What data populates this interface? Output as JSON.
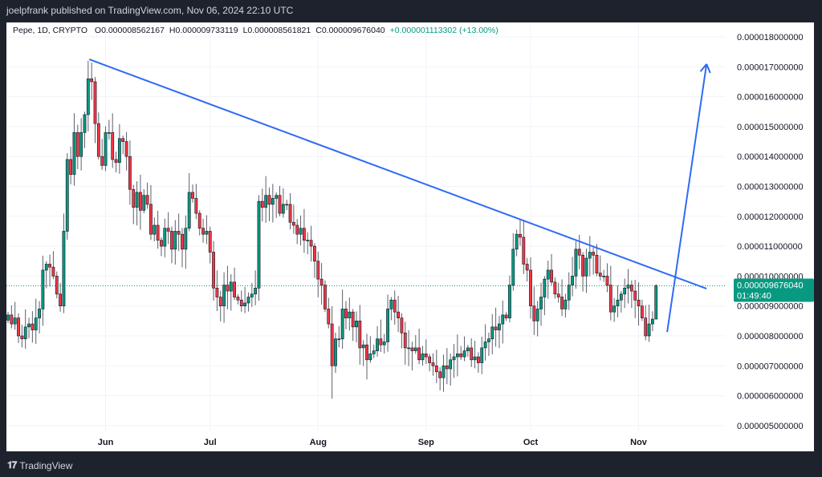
{
  "publisher_line": "joelpfrank published on TradingView.com, Nov 06, 2024 22:10 UTC",
  "legend": {
    "symbol": "Pepe, 1D, CRYPTO",
    "open": "O0.000008562167",
    "high": "H0.000009733119",
    "low": "L0.000008561821",
    "close": "C0.000009676040",
    "change": "+0.000001113302 (+13.00%)"
  },
  "price_label": {
    "value": "0.000009676040",
    "countdown": "01:49:40"
  },
  "footer": {
    "logo_mark": "17",
    "brand": "TradingView"
  },
  "colors": {
    "up": "#089981",
    "down": "#f23645",
    "drawing": "#2f6bf5",
    "price_line": "#089981",
    "background": "#1e222d"
  },
  "chart_data": {
    "type": "candlestick",
    "title": "",
    "xlabel": "",
    "ylabel": "",
    "x_tick_labels": [
      "Jun",
      "Jul",
      "Aug",
      "Sep",
      "Oct",
      "Nov"
    ],
    "y_ticks": [
      5e-06,
      6e-06,
      7e-06,
      8e-06,
      9e-06,
      1e-05,
      1.1e-05,
      1.2e-05,
      1.3e-05,
      1.4e-05,
      1.5e-05,
      1.6e-05,
      1.7e-05,
      1.8e-05
    ],
    "y_tick_labels": [
      "0.000005000000",
      "0.000006000000",
      "0.000007000000",
      "0.000008000000",
      "0.000009000000",
      "0.000010000000",
      "0.000011000000",
      "0.000012000000",
      "0.000013000000",
      "0.000014000000",
      "0.000015000000",
      "0.000016000000",
      "0.000017000000",
      "0.000018000000"
    ],
    "ylim": [
      4.5e-06,
      1.83e-05
    ],
    "grid": true,
    "closes": [
      8.7e-06,
      8.4e-06,
      8.6e-06,
      8e-06,
      7.9e-06,
      8.3e-06,
      8.4e-06,
      8.2e-06,
      8.6e-06,
      8.9e-06,
      1.02e-05,
      1.04e-05,
      1.03e-05,
      1e-05,
      9.4e-06,
      9e-06,
      1.15e-05,
      1.39e-05,
      1.34e-05,
      1.48e-05,
      1.4e-05,
      1.48e-05,
      1.54e-05,
      1.66e-05,
      1.65e-05,
      1.51e-05,
      1.4e-05,
      1.37e-05,
      1.48e-05,
      1.48e-05,
      1.39e-05,
      1.38e-05,
      1.46e-05,
      1.45e-05,
      1.4e-05,
      1.29e-05,
      1.23e-05,
      1.28e-05,
      1.22e-05,
      1.27e-05,
      1.24e-05,
      1.14e-05,
      1.17e-05,
      1.12e-05,
      1.1e-05,
      1.16e-05,
      1.15e-05,
      1.09e-05,
      1.15e-05,
      1.14e-05,
      1.09e-05,
      1.16e-05,
      1.28e-05,
      1.26e-05,
      1.21e-05,
      1.16e-05,
      1.14e-05,
      1.15e-05,
      1.08e-05,
      9.6e-06,
      9.3e-06,
      9e-06,
      9.7e-06,
      9.5e-06,
      9.8e-06,
      9.3e-06,
      9.2e-06,
      9e-06,
      9.1e-06,
      9.3e-06,
      9.4e-06,
      9.6e-06,
      1.25e-05,
      1.23e-05,
      1.27e-05,
      1.24e-05,
      1.26e-05,
      1.27e-05,
      1.21e-05,
      1.24e-05,
      1.24e-05,
      1.18e-05,
      1.17e-05,
      1.14e-05,
      1.16e-05,
      1.12e-05,
      1.12e-05,
      1.1e-05,
      1.05e-05,
      9.9e-06,
      9.7e-06,
      8.9e-06,
      8.4e-06,
      7e-06,
      7.9e-06,
      7.9e-06,
      8.9e-06,
      8.6e-06,
      8.8e-06,
      8.3e-06,
      8.5e-06,
      7.6e-06,
      7.7e-06,
      7.2e-06,
      7.4e-06,
      7.5e-06,
      7.9e-06,
      7.7e-06,
      7.8e-06,
      8.9e-06,
      9.2e-06,
      8.8e-06,
      8.6e-06,
      8.1e-06,
      7.6e-06,
      7.6e-06,
      7.5e-06,
      7.6e-06,
      7.2e-06,
      7.4e-06,
      7.3e-06,
      7.1e-06,
      7e-06,
      6.8e-06,
      6.6e-06,
      7e-06,
      6.9e-06,
      7.2e-06,
      7.3e-06,
      7.4e-06,
      7.3e-06,
      7.5e-06,
      7.6e-06,
      7.2e-06,
      7.3e-06,
      7.1e-06,
      7.6e-06,
      7.8e-06,
      7.9e-06,
      8.3e-06,
      8.2e-06,
      8.4e-06,
      8.7e-06,
      8.6e-06,
      9.7e-06,
      1.09e-05,
      1.14e-05,
      1.13e-05,
      1.04e-05,
      1.02e-05,
      9e-06,
      8.5e-06,
      8.9e-06,
      9.3e-06,
      9.9e-06,
      1.02e-05,
      9.8e-06,
      9.4e-06,
      9.3e-06,
      8.9e-06,
      9.2e-06,
      9.7e-06,
      1e-05,
      1.09e-05,
      1.07e-05,
      1e-05,
      1.06e-05,
      1.08e-05,
      1.07e-05,
      1.01e-05,
      1e-05,
      1e-05,
      9.7e-06,
      8.8e-06,
      9e-06,
      9.2e-06,
      9.4e-06,
      9.6e-06,
      9.7e-06,
      9.5e-06,
      9.2e-06,
      9e-06,
      8.6e-06,
      8e-06,
      8.4e-06,
      8.562e-06,
      9.676e-06
    ],
    "last_candle": {
      "open": 8.562167e-06,
      "high": 9.733119e-06,
      "low": 8.561821e-06,
      "close": 9.67604e-06
    },
    "notable_wicks": [
      {
        "candle": 23,
        "high": 1.72e-05
      },
      {
        "candle": 93,
        "low": 5.9e-06
      },
      {
        "candle": 147,
        "high": 1.19e-05
      },
      {
        "candle": 184,
        "low": 7.8e-06
      }
    ],
    "current_price": 9.67604e-06,
    "drawings": [
      {
        "type": "trendline",
        "from": {
          "candle": 23.3,
          "price": 1.725e-05
        },
        "to": {
          "candle": 200.5,
          "price": 9.58e-06
        }
      },
      {
        "type": "arrow",
        "from": {
          "candle": 189.2,
          "price": 8.13e-06
        },
        "to": {
          "candle": 200.5,
          "price": 1.709e-05
        }
      }
    ]
  }
}
